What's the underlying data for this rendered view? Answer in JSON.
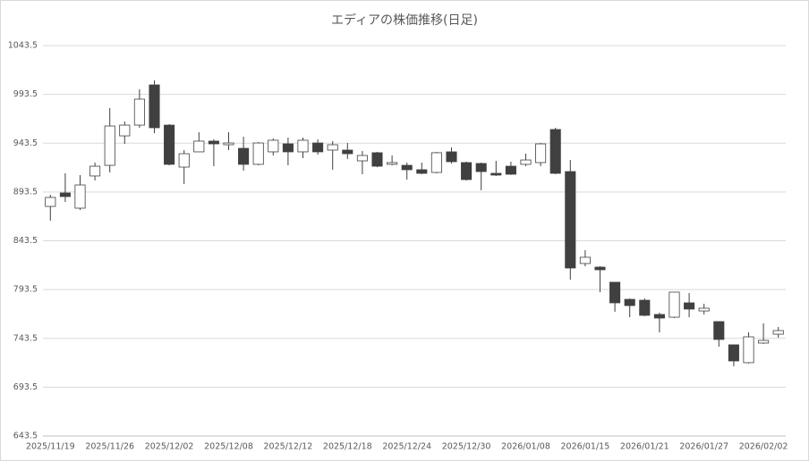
{
  "chart_data": {
    "type": "candlestick",
    "title": "エディアの株価推移(日足)",
    "categories": [
      "2025/11/19",
      null,
      null,
      null,
      "2025/11/26",
      null,
      null,
      null,
      "2025/12/02",
      null,
      null,
      null,
      "2025/12/08",
      null,
      null,
      null,
      "2025/12/12",
      null,
      null,
      null,
      "2025/12/18",
      null,
      null,
      null,
      "2025/12/24",
      null,
      null,
      null,
      "2025/12/30",
      null,
      null,
      null,
      "2026/01/08",
      null,
      null,
      null,
      "2026/01/15",
      null,
      null,
      null,
      "2026/01/21",
      null,
      null,
      null,
      "2026/01/27",
      null,
      null,
      null,
      "2026/02/02",
      null
    ],
    "open": [
      878.7,
      892.5,
      876.9,
      909.9,
      920.8,
      951.0,
      962.0,
      1003.2,
      962.0,
      919.0,
      934.6,
      945.6,
      941.9,
      938.2,
      921.8,
      934.6,
      942.8,
      934.6,
      943.7,
      936.4,
      936.4,
      925.4,
      933.7,
      921.8,
      920.8,
      916.3,
      913.5,
      934.6,
      923.6,
      922.7,
      912.6,
      919.9,
      921.8,
      923.6,
      957.5,
      914.4,
      820.2,
      816.5,
      801.0,
      783.5,
      782.6,
      768.0,
      765.2,
      779.9,
      771.6,
      760.7,
      736.9,
      718.6,
      738.7,
      747.8
    ],
    "high": [
      890.6,
      912.6,
      910.8,
      923.6,
      979.4,
      965.7,
      998.7,
      1007.8,
      963.0,
      936.4,
      954.7,
      947.4,
      954.7,
      950.1,
      944.6,
      948.3,
      949.2,
      949.2,
      947.4,
      945.6,
      943.7,
      935.5,
      934.6,
      930.9,
      923.6,
      923.6,
      934.6,
      939.2,
      924.5,
      923.6,
      925.4,
      924.5,
      932.7,
      943.7,
      959.3,
      926.3,
      833.9,
      817.4,
      801.0,
      784.4,
      784.4,
      769.8,
      790.9,
      790.0,
      779.0,
      760.7,
      736.9,
      749.7,
      758.8,
      755.2
    ],
    "low": [
      864.1,
      883.3,
      875.1,
      905.3,
      913.5,
      942.8,
      959.3,
      953.8,
      920.8,
      901.6,
      934.6,
      919.9,
      936.4,
      915.4,
      920.8,
      930.9,
      920.8,
      928.2,
      931.8,
      916.3,
      927.3,
      911.7,
      918.9,
      920.8,
      906.2,
      911.7,
      912.6,
      922.7,
      905.3,
      895.2,
      909.9,
      911.0,
      919.9,
      919.9,
      911.7,
      803.7,
      817.4,
      790.9,
      770.7,
      765.2,
      766.2,
      749.7,
      764.3,
      765.2,
      768.0,
      735.0,
      714.9,
      717.7,
      737.8,
      744.2
    ],
    "close": [
      887.9,
      888.8,
      900.7,
      919.9,
      961.1,
      962.0,
      988.6,
      959.3,
      921.8,
      932.7,
      945.6,
      942.8,
      943.7,
      921.8,
      943.7,
      946.5,
      934.6,
      946.5,
      934.6,
      941.9,
      932.7,
      930.9,
      919.9,
      923.6,
      916.3,
      912.6,
      933.7,
      924.5,
      906.2,
      914.4,
      910.8,
      911.7,
      926.3,
      942.8,
      912.6,
      815.6,
      826.6,
      813.8,
      779.9,
      777.1,
      767.1,
      764.3,
      790.9,
      773.5,
      774.4,
      742.4,
      720.4,
      745.1,
      741.4,
      751.5
    ],
    "up_color": "#ffffff",
    "down_color": "#404040",
    "edge_color": "#404040",
    "ylim": [
      643.5,
      1043.5
    ],
    "yticks": [
      643.5,
      693.5,
      743.5,
      793.5,
      843.5,
      893.5,
      943.5,
      993.5,
      1043.5
    ],
    "grid": true
  }
}
